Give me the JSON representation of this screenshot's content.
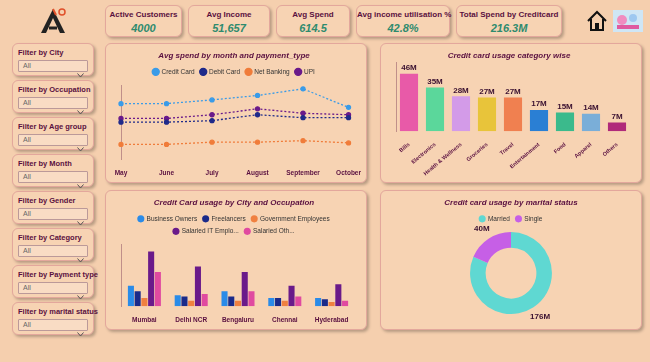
{
  "kpis": [
    {
      "label": "Active Customers",
      "value": "4000"
    },
    {
      "label": "Avg Income",
      "value": "51,657"
    },
    {
      "label": "Avg Spend",
      "value": "614.5"
    },
    {
      "label": "Avg income utilisation %",
      "value": "42.8%"
    },
    {
      "label": "Total Spend by Creditcard",
      "value": "216.3M"
    }
  ],
  "filters": [
    {
      "label": "Filter by City",
      "value": "All"
    },
    {
      "label": "Filter by Occupation",
      "value": "All"
    },
    {
      "label": "Filter by Age group",
      "value": "All"
    },
    {
      "label": "Filter by Month",
      "value": "All"
    },
    {
      "label": "Filter by Gender",
      "value": "All"
    },
    {
      "label": "Filter by Category",
      "value": "All"
    },
    {
      "label": "Filter by Payment type",
      "value": "All"
    },
    {
      "label": "Filter by marital status",
      "value": "All"
    }
  ],
  "chart_data": [
    {
      "type": "line",
      "title": "Avg spend by month and payment_type",
      "categories": [
        "May",
        "June",
        "July",
        "August",
        "September",
        "October"
      ],
      "series": [
        {
          "name": "Credit Card",
          "color": "#3a9be8",
          "values": [
            750,
            750,
            800,
            860,
            950,
            700
          ]
        },
        {
          "name": "Debit Card",
          "color": "#1f2a8a",
          "values": [
            500,
            500,
            520,
            600,
            560,
            560
          ]
        },
        {
          "name": "Net Banking",
          "color": "#f07c3a",
          "values": [
            200,
            200,
            230,
            230,
            250,
            220
          ]
        },
        {
          "name": "UPI",
          "color": "#6a1a8a",
          "values": [
            550,
            550,
            600,
            680,
            620,
            600
          ]
        }
      ],
      "ylim": [
        0,
        1000
      ],
      "legend": "top",
      "line_style": "dotted",
      "marker": "circle",
      "tick_labels": "x",
      "grid": false
    },
    {
      "type": "bar",
      "title": "Credit card usage category wise",
      "categories": [
        "Bills",
        "Electronics",
        "Health & Wellness",
        "Groceries",
        "Travel",
        "Entertainment",
        "Food",
        "Apparel",
        "Others"
      ],
      "values": [
        46,
        35,
        28,
        27,
        27,
        17,
        15,
        14,
        7
      ],
      "value_labels": [
        "46M",
        "35M",
        "28M",
        "27M",
        "27M",
        "17M",
        "15M",
        "14M",
        "7M"
      ],
      "colors": [
        "#e85aa8",
        "#5bd79b",
        "#d39be8",
        "#e8c43a",
        "#f08050",
        "#2a7fd4",
        "#3bba8c",
        "#7aaed8",
        "#b02a7a"
      ],
      "ylim": [
        0,
        55
      ],
      "data_labels": true,
      "tick_labels": "x",
      "grid": false
    },
    {
      "type": "bar",
      "title": "Credit Card usage by City and Occupation",
      "categories": [
        "Mumbai",
        "Delhi NCR",
        "Bengaluru",
        "Chennai",
        "Hyderabad"
      ],
      "series": [
        {
          "name": "Business Owners",
          "color": "#2a8be8",
          "values": [
            15,
            8,
            11,
            6,
            6
          ]
        },
        {
          "name": "Freelancers",
          "color": "#1a2a8a",
          "values": [
            11,
            7,
            7,
            6,
            5
          ]
        },
        {
          "name": "Government Employees",
          "color": "#f08040",
          "values": [
            6,
            4,
            4,
            4,
            3
          ]
        },
        {
          "name": "Salaried IT Emplo...",
          "color": "#6a1a8a",
          "values": [
            40,
            29,
            25,
            15,
            16
          ]
        },
        {
          "name": "Salaried Oth...",
          "color": "#e04aa0",
          "values": [
            25,
            9,
            11,
            7,
            4
          ]
        }
      ],
      "ylim": [
        0,
        45
      ],
      "legend": "top",
      "tick_labels": "x",
      "grid": false
    },
    {
      "type": "doughnut",
      "title": "Credit card usage by marital status",
      "categories": [
        "Married",
        "Single"
      ],
      "values": [
        176,
        40
      ],
      "value_labels": [
        "176M",
        "40M"
      ],
      "colors": [
        "#5fd8d2",
        "#c65fe6"
      ],
      "legend": "top",
      "data_labels": true,
      "tick_labels": false
    }
  ]
}
